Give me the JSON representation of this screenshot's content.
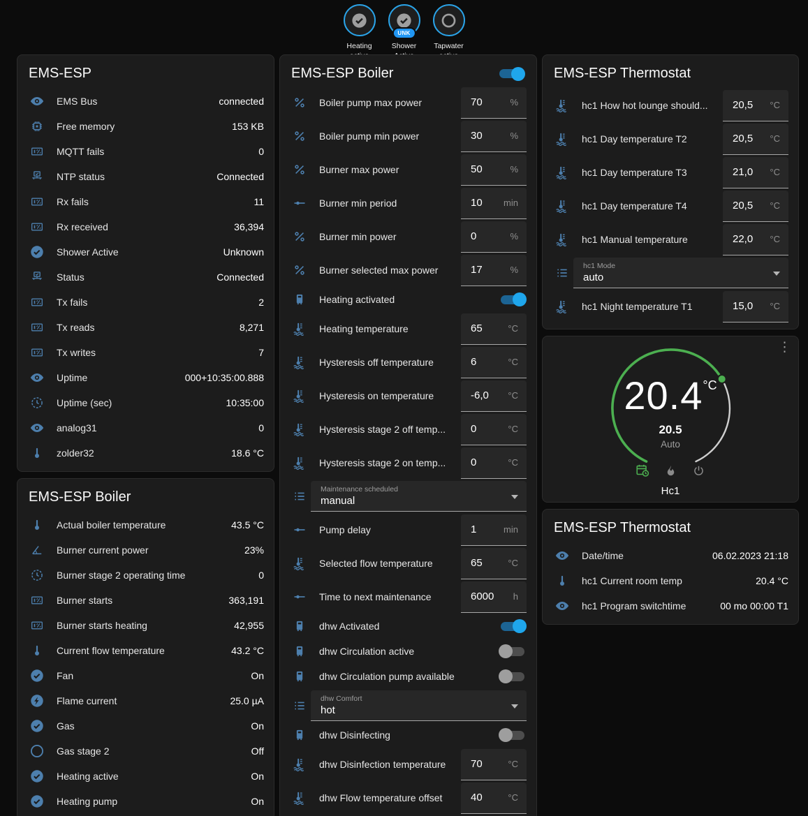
{
  "colors": {
    "icon_blue": "#4d7fad",
    "toggle_on": "#1fa6ec",
    "badge_border_blue": "#2aa3e8",
    "gauge_green": "#4caf50",
    "card_bg": "#1c1c1c"
  },
  "header": {
    "badges": [
      {
        "label": "Heating\nactive",
        "icon": "check-circle",
        "sub": ""
      },
      {
        "label": "Shower\nActive",
        "icon": "check-circle",
        "sub": "UNK"
      },
      {
        "label": "Tapwater\nactive",
        "icon": "circle-outline",
        "sub": ""
      }
    ]
  },
  "cards": {
    "ems_esp": {
      "title": "EMS-ESP",
      "rows": [
        {
          "type": "sensor",
          "icon": "eye",
          "label": "EMS Bus",
          "value": "connected"
        },
        {
          "type": "sensor",
          "icon": "chip",
          "label": "Free memory",
          "value": "153 KB"
        },
        {
          "type": "sensor",
          "icon": "counter",
          "label": "MQTT fails",
          "value": "0"
        },
        {
          "type": "sensor",
          "icon": "network",
          "label": "NTP status",
          "value": "Connected"
        },
        {
          "type": "sensor",
          "icon": "counter",
          "label": "Rx fails",
          "value": "11"
        },
        {
          "type": "sensor",
          "icon": "counter",
          "label": "Rx received",
          "value": "36,394"
        },
        {
          "type": "sensor",
          "icon": "check-circle",
          "label": "Shower Active",
          "value": "Unknown"
        },
        {
          "type": "sensor",
          "icon": "network",
          "label": "Status",
          "value": "Connected"
        },
        {
          "type": "sensor",
          "icon": "counter",
          "label": "Tx fails",
          "value": "2"
        },
        {
          "type": "sensor",
          "icon": "counter",
          "label": "Tx reads",
          "value": "8,271"
        },
        {
          "type": "sensor",
          "icon": "counter",
          "label": "Tx writes",
          "value": "7"
        },
        {
          "type": "sensor",
          "icon": "eye",
          "label": "Uptime",
          "value": "000+10:35:00.888"
        },
        {
          "type": "sensor",
          "icon": "clock",
          "label": "Uptime (sec)",
          "value": "10:35:00"
        },
        {
          "type": "sensor",
          "icon": "eye",
          "label": "analog31",
          "value": "0"
        },
        {
          "type": "sensor",
          "icon": "thermometer",
          "label": "zolder32",
          "value": "18.6 °C"
        }
      ]
    },
    "boiler_sensors": {
      "title": "EMS-ESP Boiler",
      "rows": [
        {
          "type": "sensor",
          "icon": "thermometer",
          "label": "Actual boiler temperature",
          "value": "43.5 °C"
        },
        {
          "type": "sensor",
          "icon": "angle",
          "label": "Burner current power",
          "value": "23%"
        },
        {
          "type": "sensor",
          "icon": "clock",
          "label": "Burner stage 2 operating time",
          "value": "0"
        },
        {
          "type": "sensor",
          "icon": "counter",
          "label": "Burner starts",
          "value": "363,191"
        },
        {
          "type": "sensor",
          "icon": "counter",
          "label": "Burner starts heating",
          "value": "42,955"
        },
        {
          "type": "sensor",
          "icon": "thermometer",
          "label": "Current flow temperature",
          "value": "43.2 °C"
        },
        {
          "type": "sensor",
          "icon": "check-circle",
          "label": "Fan",
          "value": "On"
        },
        {
          "type": "sensor",
          "icon": "flash-circle",
          "label": "Flame current",
          "value": "25.0 µA"
        },
        {
          "type": "sensor",
          "icon": "check-circle",
          "label": "Gas",
          "value": "On"
        },
        {
          "type": "sensor",
          "icon": "circle-outline",
          "label": "Gas stage 2",
          "value": "Off"
        },
        {
          "type": "sensor",
          "icon": "check-circle",
          "label": "Heating active",
          "value": "On"
        },
        {
          "type": "sensor",
          "icon": "check-circle",
          "label": "Heating pump",
          "value": "On"
        }
      ]
    },
    "boiler_controls": {
      "title": "EMS-ESP Boiler",
      "header_toggle": "on",
      "rows": [
        {
          "type": "number",
          "icon": "percent",
          "label": "Boiler pump max power",
          "value": "70",
          "unit": "%"
        },
        {
          "type": "number",
          "icon": "percent",
          "label": "Boiler pump min power",
          "value": "30",
          "unit": "%"
        },
        {
          "type": "number",
          "icon": "percent",
          "label": "Burner max power",
          "value": "50",
          "unit": "%"
        },
        {
          "type": "number",
          "icon": "slider",
          "label": "Burner min period",
          "value": "10",
          "unit": "min"
        },
        {
          "type": "number",
          "icon": "percent",
          "label": "Burner min power",
          "value": "0",
          "unit": "%"
        },
        {
          "type": "number",
          "icon": "percent",
          "label": "Burner selected max power",
          "value": "17",
          "unit": "%"
        },
        {
          "type": "toggle",
          "icon": "boiler",
          "label": "Heating activated",
          "state": "on"
        },
        {
          "type": "number",
          "icon": "thermo-water",
          "label": "Heating temperature",
          "value": "65",
          "unit": "°C"
        },
        {
          "type": "number",
          "icon": "thermo-water",
          "label": "Hysteresis off temperature",
          "value": "6",
          "unit": "°C"
        },
        {
          "type": "number",
          "icon": "thermo-water",
          "label": "Hysteresis on temperature",
          "value": "-6,0",
          "unit": "°C"
        },
        {
          "type": "number",
          "icon": "thermo-water",
          "label": "Hysteresis stage 2 off temp...",
          "value": "0",
          "unit": "°C"
        },
        {
          "type": "number",
          "icon": "thermo-water",
          "label": "Hysteresis stage 2 on temp...",
          "value": "0",
          "unit": "°C"
        },
        {
          "type": "select",
          "icon": "list",
          "field_label": "Maintenance scheduled",
          "value": "manual"
        },
        {
          "type": "number",
          "icon": "slider",
          "label": "Pump delay",
          "value": "1",
          "unit": "min"
        },
        {
          "type": "number",
          "icon": "thermo-water",
          "label": "Selected flow temperature",
          "value": "65",
          "unit": "°C"
        },
        {
          "type": "number",
          "icon": "slider",
          "label": "Time to next maintenance",
          "value": "6000",
          "unit": "h"
        },
        {
          "type": "toggle",
          "icon": "boiler",
          "label": "dhw Activated",
          "state": "on"
        },
        {
          "type": "toggle",
          "icon": "boiler",
          "label": "dhw Circulation active",
          "state": "off"
        },
        {
          "type": "toggle",
          "icon": "boiler",
          "label": "dhw Circulation pump available",
          "state": "off"
        },
        {
          "type": "select",
          "icon": "list",
          "field_label": "dhw Comfort",
          "value": "hot"
        },
        {
          "type": "toggle",
          "icon": "boiler",
          "label": "dhw Disinfecting",
          "state": "off"
        },
        {
          "type": "number",
          "icon": "thermo-water",
          "label": "dhw Disinfection temperature",
          "value": "70",
          "unit": "°C"
        },
        {
          "type": "number",
          "icon": "thermo-water",
          "label": "dhw Flow temperature offset",
          "value": "40",
          "unit": "°C"
        }
      ]
    },
    "thermostat_controls": {
      "title": "EMS-ESP Thermostat",
      "rows": [
        {
          "type": "number",
          "icon": "thermo-water",
          "label": "hc1 How hot lounge should...",
          "value": "20,5",
          "unit": "°C"
        },
        {
          "type": "number",
          "icon": "thermo-water",
          "label": "hc1 Day temperature T2",
          "value": "20,5",
          "unit": "°C"
        },
        {
          "type": "number",
          "icon": "thermo-water",
          "label": "hc1 Day temperature T3",
          "value": "21,0",
          "unit": "°C"
        },
        {
          "type": "number",
          "icon": "thermo-water",
          "label": "hc1 Day temperature T4",
          "value": "20,5",
          "unit": "°C"
        },
        {
          "type": "number",
          "icon": "thermo-water",
          "label": "hc1 Manual temperature",
          "value": "22,0",
          "unit": "°C"
        },
        {
          "type": "select",
          "icon": "list",
          "field_label": "hc1 Mode",
          "value": "auto"
        },
        {
          "type": "number",
          "icon": "thermo-water",
          "label": "hc1 Night temperature T1",
          "value": "15,0",
          "unit": "°C"
        }
      ]
    },
    "thermostat_gauge": {
      "current": "20.4",
      "unit": "°C",
      "target": "20.5",
      "mode": "Auto",
      "name": "Hc1"
    },
    "thermostat_sensors": {
      "title": "EMS-ESP Thermostat",
      "rows": [
        {
          "type": "sensor",
          "icon": "eye",
          "label": "Date/time",
          "value": "06.02.2023 21:18"
        },
        {
          "type": "sensor",
          "icon": "thermometer",
          "label": "hc1 Current room temp",
          "value": "20.4 °C"
        },
        {
          "type": "sensor",
          "icon": "eye",
          "label": "hc1 Program switchtime",
          "value": "00 mo 00:00 T1"
        }
      ]
    }
  }
}
